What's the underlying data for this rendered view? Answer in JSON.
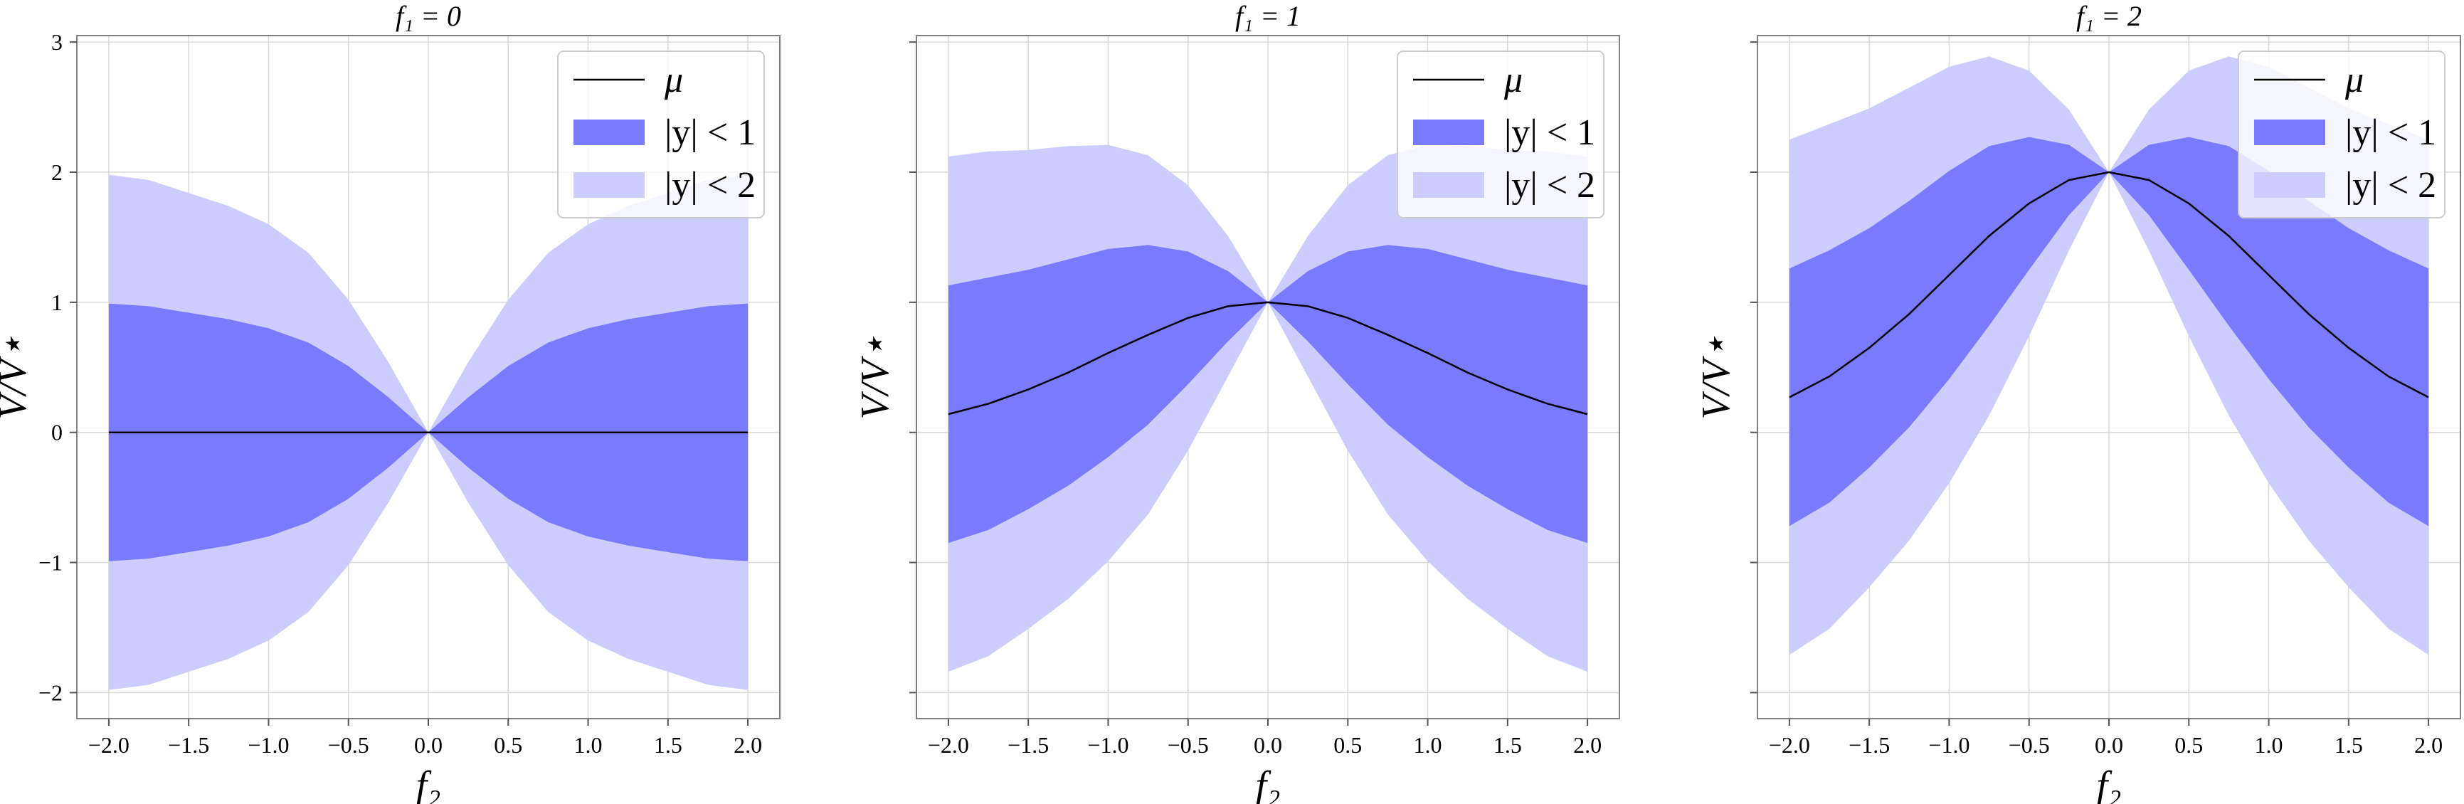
{
  "colors": {
    "band1": "#7a7aff",
    "band2": "#cccdfd",
    "mean_line": "#000000",
    "background": "#ffffff",
    "grid": "#d9d9d9"
  },
  "chart_data": [
    {
      "type": "area",
      "title": "f₁ = 0",
      "xlabel": "f₂",
      "ylabel": "V/V⋆",
      "xlim": [
        -2.2,
        2.2
      ],
      "ylim": [
        -2.2,
        3.05
      ],
      "xticks": [
        -2.0,
        -1.5,
        -1.0,
        -0.5,
        0.0,
        0.5,
        1.0,
        1.5,
        2.0
      ],
      "xtick_labels": [
        "−2.0",
        "−1.5",
        "−1.0",
        "−0.5",
        "0.0",
        "0.5",
        "1.0",
        "1.5",
        "2.0"
      ],
      "yticks": [
        -2,
        -1,
        0,
        1,
        2,
        3
      ],
      "ytick_labels": [
        "−2",
        "−1",
        "0",
        "1",
        "2",
        "3"
      ],
      "show_ytick_labels": true,
      "grid": true,
      "legend_position": "top-right",
      "legend": [
        "μ",
        "|y| < 1",
        "|y| < 2"
      ],
      "x": [
        -2.0,
        -1.75,
        -1.5,
        -1.25,
        -1.0,
        -0.75,
        -0.5,
        -0.25,
        0.0,
        0.25,
        0.5,
        0.75,
        1.0,
        1.25,
        1.5,
        1.75,
        2.0
      ],
      "mu": [
        0,
        0,
        0,
        0,
        0,
        0,
        0,
        0,
        0,
        0,
        0,
        0,
        0,
        0,
        0,
        0,
        0
      ],
      "band_half_width": [
        0.99,
        0.97,
        0.92,
        0.87,
        0.8,
        0.69,
        0.51,
        0.27,
        0.0,
        0.27,
        0.51,
        0.69,
        0.8,
        0.87,
        0.92,
        0.97,
        0.99
      ]
    },
    {
      "type": "area",
      "title": "f₁ = 1",
      "xlabel": "f₂",
      "ylabel": "V/V⋆",
      "xlim": [
        -2.2,
        2.2
      ],
      "ylim": [
        -2.2,
        3.05
      ],
      "xticks": [
        -2.0,
        -1.5,
        -1.0,
        -0.5,
        0.0,
        0.5,
        1.0,
        1.5,
        2.0
      ],
      "xtick_labels": [
        "−2.0",
        "−1.5",
        "−1.0",
        "−0.5",
        "0.0",
        "0.5",
        "1.0",
        "1.5",
        "2.0"
      ],
      "yticks": [
        -2,
        -1,
        0,
        1,
        2,
        3
      ],
      "ytick_labels": [
        "",
        "",
        "",
        "",
        "",
        ""
      ],
      "show_ytick_labels": false,
      "grid": true,
      "legend_position": "top-right",
      "legend": [
        "μ",
        "|y| < 1",
        "|y| < 2"
      ],
      "x": [
        -2.0,
        -1.75,
        -1.5,
        -1.25,
        -1.0,
        -0.75,
        -0.5,
        -0.25,
        0.0,
        0.25,
        0.5,
        0.75,
        1.0,
        1.25,
        1.5,
        1.75,
        2.0
      ],
      "mu": [
        0.14,
        0.22,
        0.33,
        0.46,
        0.61,
        0.75,
        0.88,
        0.97,
        1.0,
        0.97,
        0.88,
        0.75,
        0.61,
        0.46,
        0.33,
        0.22,
        0.14
      ],
      "band_half_width": [
        0.99,
        0.97,
        0.92,
        0.87,
        0.8,
        0.69,
        0.51,
        0.27,
        0.0,
        0.27,
        0.51,
        0.69,
        0.8,
        0.87,
        0.92,
        0.97,
        0.99
      ]
    },
    {
      "type": "area",
      "title": "f₁ = 2",
      "xlabel": "f₂",
      "ylabel": "V/V⋆",
      "xlim": [
        -2.2,
        2.2
      ],
      "ylim": [
        -2.2,
        3.05
      ],
      "xticks": [
        -2.0,
        -1.5,
        -1.0,
        -0.5,
        0.0,
        0.5,
        1.0,
        1.5,
        2.0
      ],
      "xtick_labels": [
        "−2.0",
        "−1.5",
        "−1.0",
        "−0.5",
        "0.0",
        "0.5",
        "1.0",
        "1.5",
        "2.0"
      ],
      "yticks": [
        -2,
        -1,
        0,
        1,
        2,
        3
      ],
      "ytick_labels": [
        "",
        "",
        "",
        "",
        "",
        ""
      ],
      "show_ytick_labels": false,
      "grid": true,
      "legend_position": "top-right",
      "legend": [
        "μ",
        "|y| < 1",
        "|y| < 2"
      ],
      "x": [
        -2.0,
        -1.75,
        -1.5,
        -1.25,
        -1.0,
        -0.75,
        -0.5,
        -0.25,
        0.0,
        0.25,
        0.5,
        0.75,
        1.0,
        1.25,
        1.5,
        1.75,
        2.0
      ],
      "mu": [
        0.27,
        0.43,
        0.65,
        0.91,
        1.21,
        1.51,
        1.76,
        1.94,
        2.0,
        1.94,
        1.76,
        1.51,
        1.21,
        0.91,
        0.65,
        0.43,
        0.27
      ],
      "band_half_width": [
        0.99,
        0.97,
        0.92,
        0.87,
        0.8,
        0.69,
        0.51,
        0.27,
        0.0,
        0.27,
        0.51,
        0.69,
        0.8,
        0.87,
        0.92,
        0.97,
        0.99
      ]
    }
  ]
}
